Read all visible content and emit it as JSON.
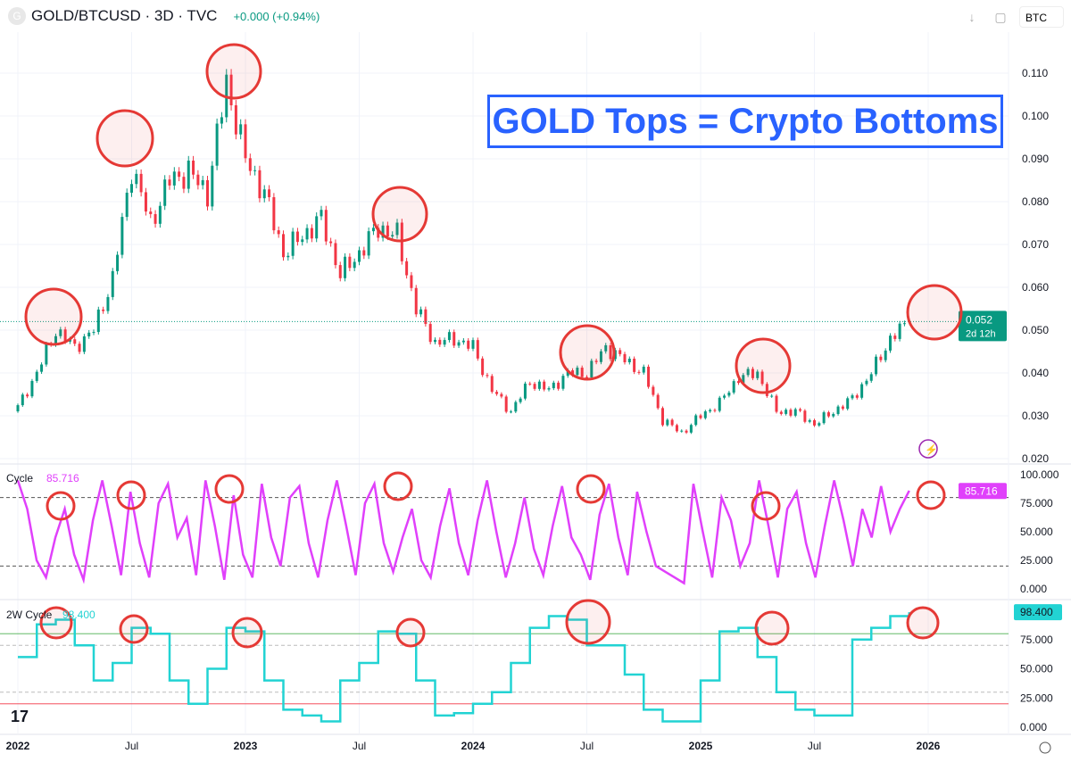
{
  "header": {
    "logo_letter": "G",
    "symbol": "GOLD/BTCUSD · 3D · TVC",
    "change": "+0.000 (+0.94%)",
    "currency": "BTC"
  },
  "annotation": "GOLD Tops = Crypto Bottoms",
  "colors": {
    "up": "#089981",
    "down": "#f23645",
    "cycle": "#e040fb",
    "cycle2w": "#22d3d3",
    "circle": "#e53935",
    "box": "#2962ff"
  },
  "chart_data": [
    {
      "type": "candlestick",
      "title": "GOLD/BTCUSD 3D",
      "ylim": [
        0.02,
        0.11
      ],
      "yticks": [
        "0.110",
        "0.100",
        "0.090",
        "0.080",
        "0.070",
        "0.060",
        "0.050",
        "0.040",
        "0.030",
        "0.020"
      ],
      "last_price": "0.052",
      "countdown": "2d 12h",
      "x_ticks": [
        "2022",
        "Jul",
        "2023",
        "Jul",
        "2024",
        "Jul",
        "2025",
        "Jul",
        "2026"
      ],
      "monthly_close": [
        0.032,
        0.04,
        0.05,
        0.046,
        0.05,
        0.062,
        0.088,
        0.075,
        0.085,
        0.087,
        0.082,
        0.108,
        0.09,
        0.082,
        0.068,
        0.072,
        0.076,
        0.063,
        0.068,
        0.074,
        0.072,
        0.055,
        0.047,
        0.048,
        0.046,
        0.036,
        0.031,
        0.038,
        0.036,
        0.04,
        0.04,
        0.046,
        0.043,
        0.04,
        0.029,
        0.026,
        0.03,
        0.033,
        0.039,
        0.04,
        0.031,
        0.031,
        0.028,
        0.031,
        0.034,
        0.04,
        0.048,
        0.052
      ]
    },
    {
      "type": "line",
      "name": "Cycle",
      "value": "85.716",
      "ylim": [
        0,
        100
      ],
      "yticks": [
        "100.000",
        "75.000",
        "50.000",
        "25.000",
        "0.000"
      ],
      "levels": [
        80,
        20
      ],
      "values": [
        95,
        70,
        25,
        10,
        45,
        70,
        30,
        8,
        60,
        95,
        55,
        12,
        85,
        40,
        10,
        75,
        92,
        45,
        62,
        12,
        95,
        55,
        8,
        82,
        30,
        10,
        92,
        45,
        20,
        80,
        90,
        40,
        10,
        60,
        95,
        55,
        12,
        75,
        92,
        40,
        15,
        45,
        70,
        25,
        10,
        55,
        88,
        40,
        12,
        60,
        95,
        50,
        10,
        40,
        80,
        35,
        12,
        55,
        90,
        45,
        30,
        8,
        65,
        92,
        45,
        12,
        85,
        50,
        20,
        15,
        10,
        5,
        92,
        50,
        10,
        80,
        60,
        20,
        40,
        95,
        55,
        10,
        70,
        85,
        40,
        10,
        55,
        95,
        60,
        20,
        70,
        45,
        90,
        50,
        70,
        86
      ]
    },
    {
      "type": "line",
      "name": "2W Cycle",
      "value": "98.400",
      "ylim": [
        0,
        100
      ],
      "yticks": [
        "75.000",
        "50.000",
        "25.000",
        "0.000"
      ],
      "levels": [
        80,
        70,
        30,
        20
      ],
      "values": [
        60,
        88,
        92,
        70,
        40,
        55,
        85,
        80,
        40,
        20,
        50,
        85,
        82,
        40,
        15,
        10,
        5,
        40,
        55,
        82,
        80,
        40,
        10,
        12,
        20,
        30,
        55,
        85,
        95,
        92,
        70,
        70,
        45,
        15,
        5,
        5,
        40,
        82,
        85,
        60,
        30,
        15,
        10,
        10,
        75,
        85,
        95,
        98.4
      ]
    }
  ]
}
